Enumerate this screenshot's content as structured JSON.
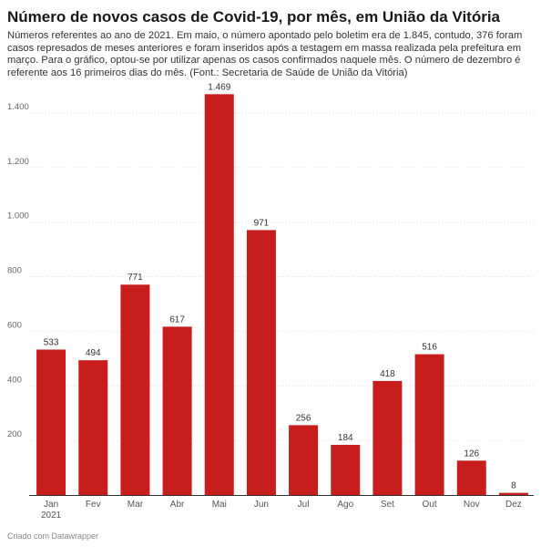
{
  "header": {
    "title": "Número de novos casos de Covid-19, por mês, em União da Vitória",
    "subtitle": "Números referentes ao ano de 2021. Em maio, o número apontado pelo boletim era de 1.845, contudo, 376 foram casos represados de meses anteriores e foram inseridos após a testagem em massa realizada pela prefeitura em março. Para o gráfico, optou-se por utilizar apenas os casos confirmados naquele mês. O número de dezembro é referente aos 16 primeiros dias do mês. (Font.: Secretaria de Saúde de União da Vitória)"
  },
  "chart_data": {
    "type": "bar",
    "title": "Número de novos casos de Covid-19, por mês, em União da Vitória",
    "categories": [
      "Jan",
      "Fev",
      "Mar",
      "Abr",
      "Mai",
      "Jun",
      "Jul",
      "Ago",
      "Set",
      "Out",
      "Nov",
      "Dez"
    ],
    "category_sublabels": [
      "2021",
      "",
      "",
      "",
      "",
      "",
      "",
      "",
      "",
      "",
      "",
      ""
    ],
    "values": [
      533,
      494,
      771,
      617,
      1469,
      971,
      256,
      184,
      418,
      516,
      126,
      8
    ],
    "value_labels": [
      "533",
      "494",
      "771",
      "617",
      "1.469",
      "971",
      "256",
      "184",
      "418",
      "516",
      "126",
      "8"
    ],
    "yticks": [
      200,
      400,
      600,
      800,
      1000,
      1200,
      1400
    ],
    "ytick_labels": [
      "200",
      "400",
      "600",
      "800",
      "1.000",
      "1.200",
      "1.400"
    ],
    "ylim": [
      0,
      1400
    ],
    "xlabel": "",
    "ylabel": "",
    "grid": true,
    "bar_color": "#c71e1d"
  },
  "footer": {
    "credit": "Criado com Datawrapper"
  }
}
